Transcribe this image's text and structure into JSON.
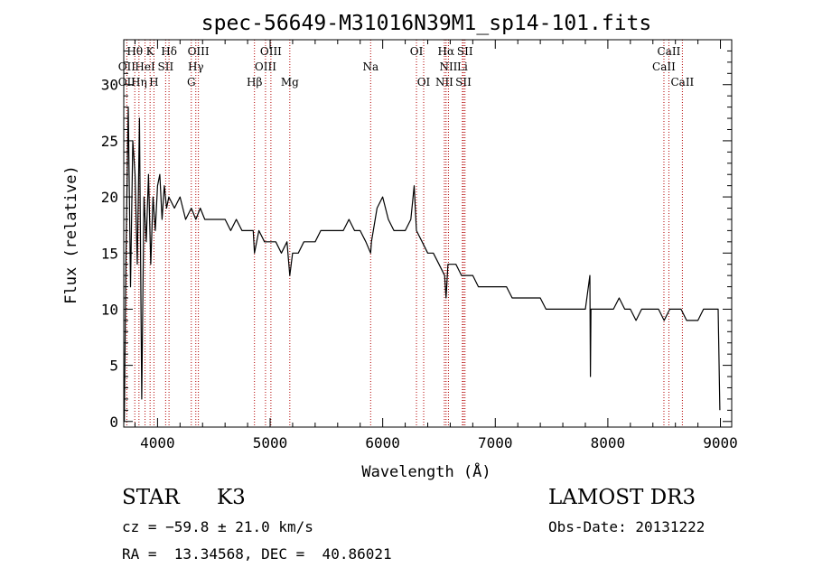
{
  "chart_data": {
    "type": "line",
    "title": "spec-56649-M31016N39M1_sp14-101.fits",
    "xlabel": "Wavelength (Å)",
    "ylabel": "Flux (relative)",
    "xlim": [
      3700,
      9100
    ],
    "ylim": [
      -0.5,
      34
    ],
    "xticks": [
      4000,
      5000,
      6000,
      7000,
      8000,
      9000
    ],
    "xtick_labels": [
      "4000",
      "5000",
      "6000",
      "7000",
      "8000",
      "9000"
    ],
    "yticks": [
      0,
      5,
      10,
      15,
      20,
      25,
      30
    ],
    "ytick_labels": [
      "0",
      "5",
      "10",
      "15",
      "20",
      "25",
      "30"
    ],
    "grid": false,
    "series": [
      {
        "name": "flux",
        "color": "#000000",
        "x": [
          3705,
          3720,
          3740,
          3760,
          3780,
          3800,
          3820,
          3840,
          3860,
          3880,
          3900,
          3920,
          3940,
          3960,
          3980,
          4000,
          4020,
          4040,
          4060,
          4080,
          4100,
          4150,
          4200,
          4250,
          4300,
          4340,
          4380,
          4420,
          4460,
          4500,
          4550,
          4600,
          4650,
          4700,
          4750,
          4800,
          4850,
          4861,
          4900,
          4950,
          5000,
          5050,
          5100,
          5150,
          5175,
          5200,
          5250,
          5300,
          5350,
          5400,
          5450,
          5500,
          5550,
          5600,
          5650,
          5700,
          5750,
          5800,
          5850,
          5893,
          5900,
          5950,
          6000,
          6050,
          6100,
          6150,
          6200,
          6250,
          6280,
          6300,
          6350,
          6400,
          6450,
          6500,
          6550,
          6563,
          6580,
          6600,
          6650,
          6700,
          6750,
          6800,
          6850,
          6900,
          6950,
          7000,
          7050,
          7100,
          7150,
          7200,
          7250,
          7300,
          7350,
          7400,
          7450,
          7500,
          7550,
          7600,
          7650,
          7700,
          7750,
          7800,
          7840,
          7845,
          7850,
          7900,
          7950,
          8000,
          8050,
          8100,
          8150,
          8200,
          8250,
          8300,
          8350,
          8400,
          8450,
          8500,
          8550,
          8600,
          8650,
          8700,
          8750,
          8800,
          8850,
          8900,
          8950,
          8980,
          8995
        ],
        "y": [
          0,
          15,
          28,
          12,
          25,
          22,
          14,
          27,
          2,
          20,
          16,
          22,
          14,
          20,
          17,
          21,
          22,
          18,
          21,
          19,
          20,
          19,
          20,
          18,
          19,
          18,
          19,
          18,
          18,
          18,
          18,
          18,
          17,
          18,
          17,
          17,
          17,
          15,
          17,
          16,
          16,
          16,
          15,
          16,
          13,
          15,
          15,
          16,
          16,
          16,
          17,
          17,
          17,
          17,
          17,
          18,
          17,
          17,
          16,
          15,
          16,
          19,
          20,
          18,
          17,
          17,
          17,
          18,
          21,
          17,
          16,
          15,
          15,
          14,
          13,
          11,
          14,
          14,
          14,
          13,
          13,
          13,
          12,
          12,
          12,
          12,
          12,
          12,
          11,
          11,
          11,
          11,
          11,
          11,
          10,
          10,
          10,
          10,
          10,
          10,
          10,
          10,
          13,
          4,
          10,
          10,
          10,
          10,
          10,
          11,
          10,
          10,
          9,
          10,
          10,
          10,
          10,
          9,
          10,
          10,
          10,
          9,
          9,
          9,
          10,
          10,
          10,
          10,
          1
        ]
      }
    ],
    "lines": [
      {
        "label": "Hθ",
        "x": 3798,
        "row": 1
      },
      {
        "label": "K",
        "x": 3934,
        "row": 1
      },
      {
        "label": "Hδ",
        "x": 4102,
        "row": 1
      },
      {
        "label": "OIII",
        "x": 4363,
        "row": 1
      },
      {
        "label": "OIII",
        "x": 5007,
        "row": 1
      },
      {
        "label": "OI",
        "x": 6300,
        "row": 1
      },
      {
        "label": "Hα",
        "x": 6563,
        "row": 1
      },
      {
        "label": "SII",
        "x": 6731,
        "row": 1
      },
      {
        "label": "CaII",
        "x": 8542,
        "row": 1
      },
      {
        "label": "OII",
        "x": 3727,
        "row": 2
      },
      {
        "label": "HeI",
        "x": 3889,
        "row": 2
      },
      {
        "label": "SII",
        "x": 4072,
        "row": 2
      },
      {
        "label": "Hγ",
        "x": 4340,
        "row": 2
      },
      {
        "label": "OIII",
        "x": 4959,
        "row": 2
      },
      {
        "label": "Na",
        "x": 5893,
        "row": 2
      },
      {
        "label": "NII",
        "x": 6584,
        "row": 2
      },
      {
        "label": "Li",
        "x": 6708,
        "row": 2
      },
      {
        "label": "CaII",
        "x": 8498,
        "row": 2
      },
      {
        "label": "OII",
        "x": 3727,
        "row": 3
      },
      {
        "label": "Hη",
        "x": 3835,
        "row": 3
      },
      {
        "label": "H",
        "x": 3968,
        "row": 3
      },
      {
        "label": "G",
        "x": 4300,
        "row": 3
      },
      {
        "label": "Hβ",
        "x": 4861,
        "row": 3
      },
      {
        "label": "Mg",
        "x": 5175,
        "row": 3
      },
      {
        "label": "OI",
        "x": 6364,
        "row": 3
      },
      {
        "label": "NII",
        "x": 6548,
        "row": 3
      },
      {
        "label": "SII",
        "x": 6717,
        "row": 3
      },
      {
        "label": "CaII",
        "x": 8662,
        "row": 3
      }
    ]
  },
  "info": {
    "class": "STAR",
    "subclass": "K3",
    "survey": "LAMOST DR3",
    "cz": "cz = −59.8 ± 21.0 km/s",
    "obs_date": "Obs-Date: 20131222",
    "coords": "RA =  13.34568, DEC =  40.86021"
  },
  "colors": {
    "spectrum": "#000000",
    "line_marker": "#b30000",
    "axis": "#000000",
    "background": "#ffffff"
  }
}
